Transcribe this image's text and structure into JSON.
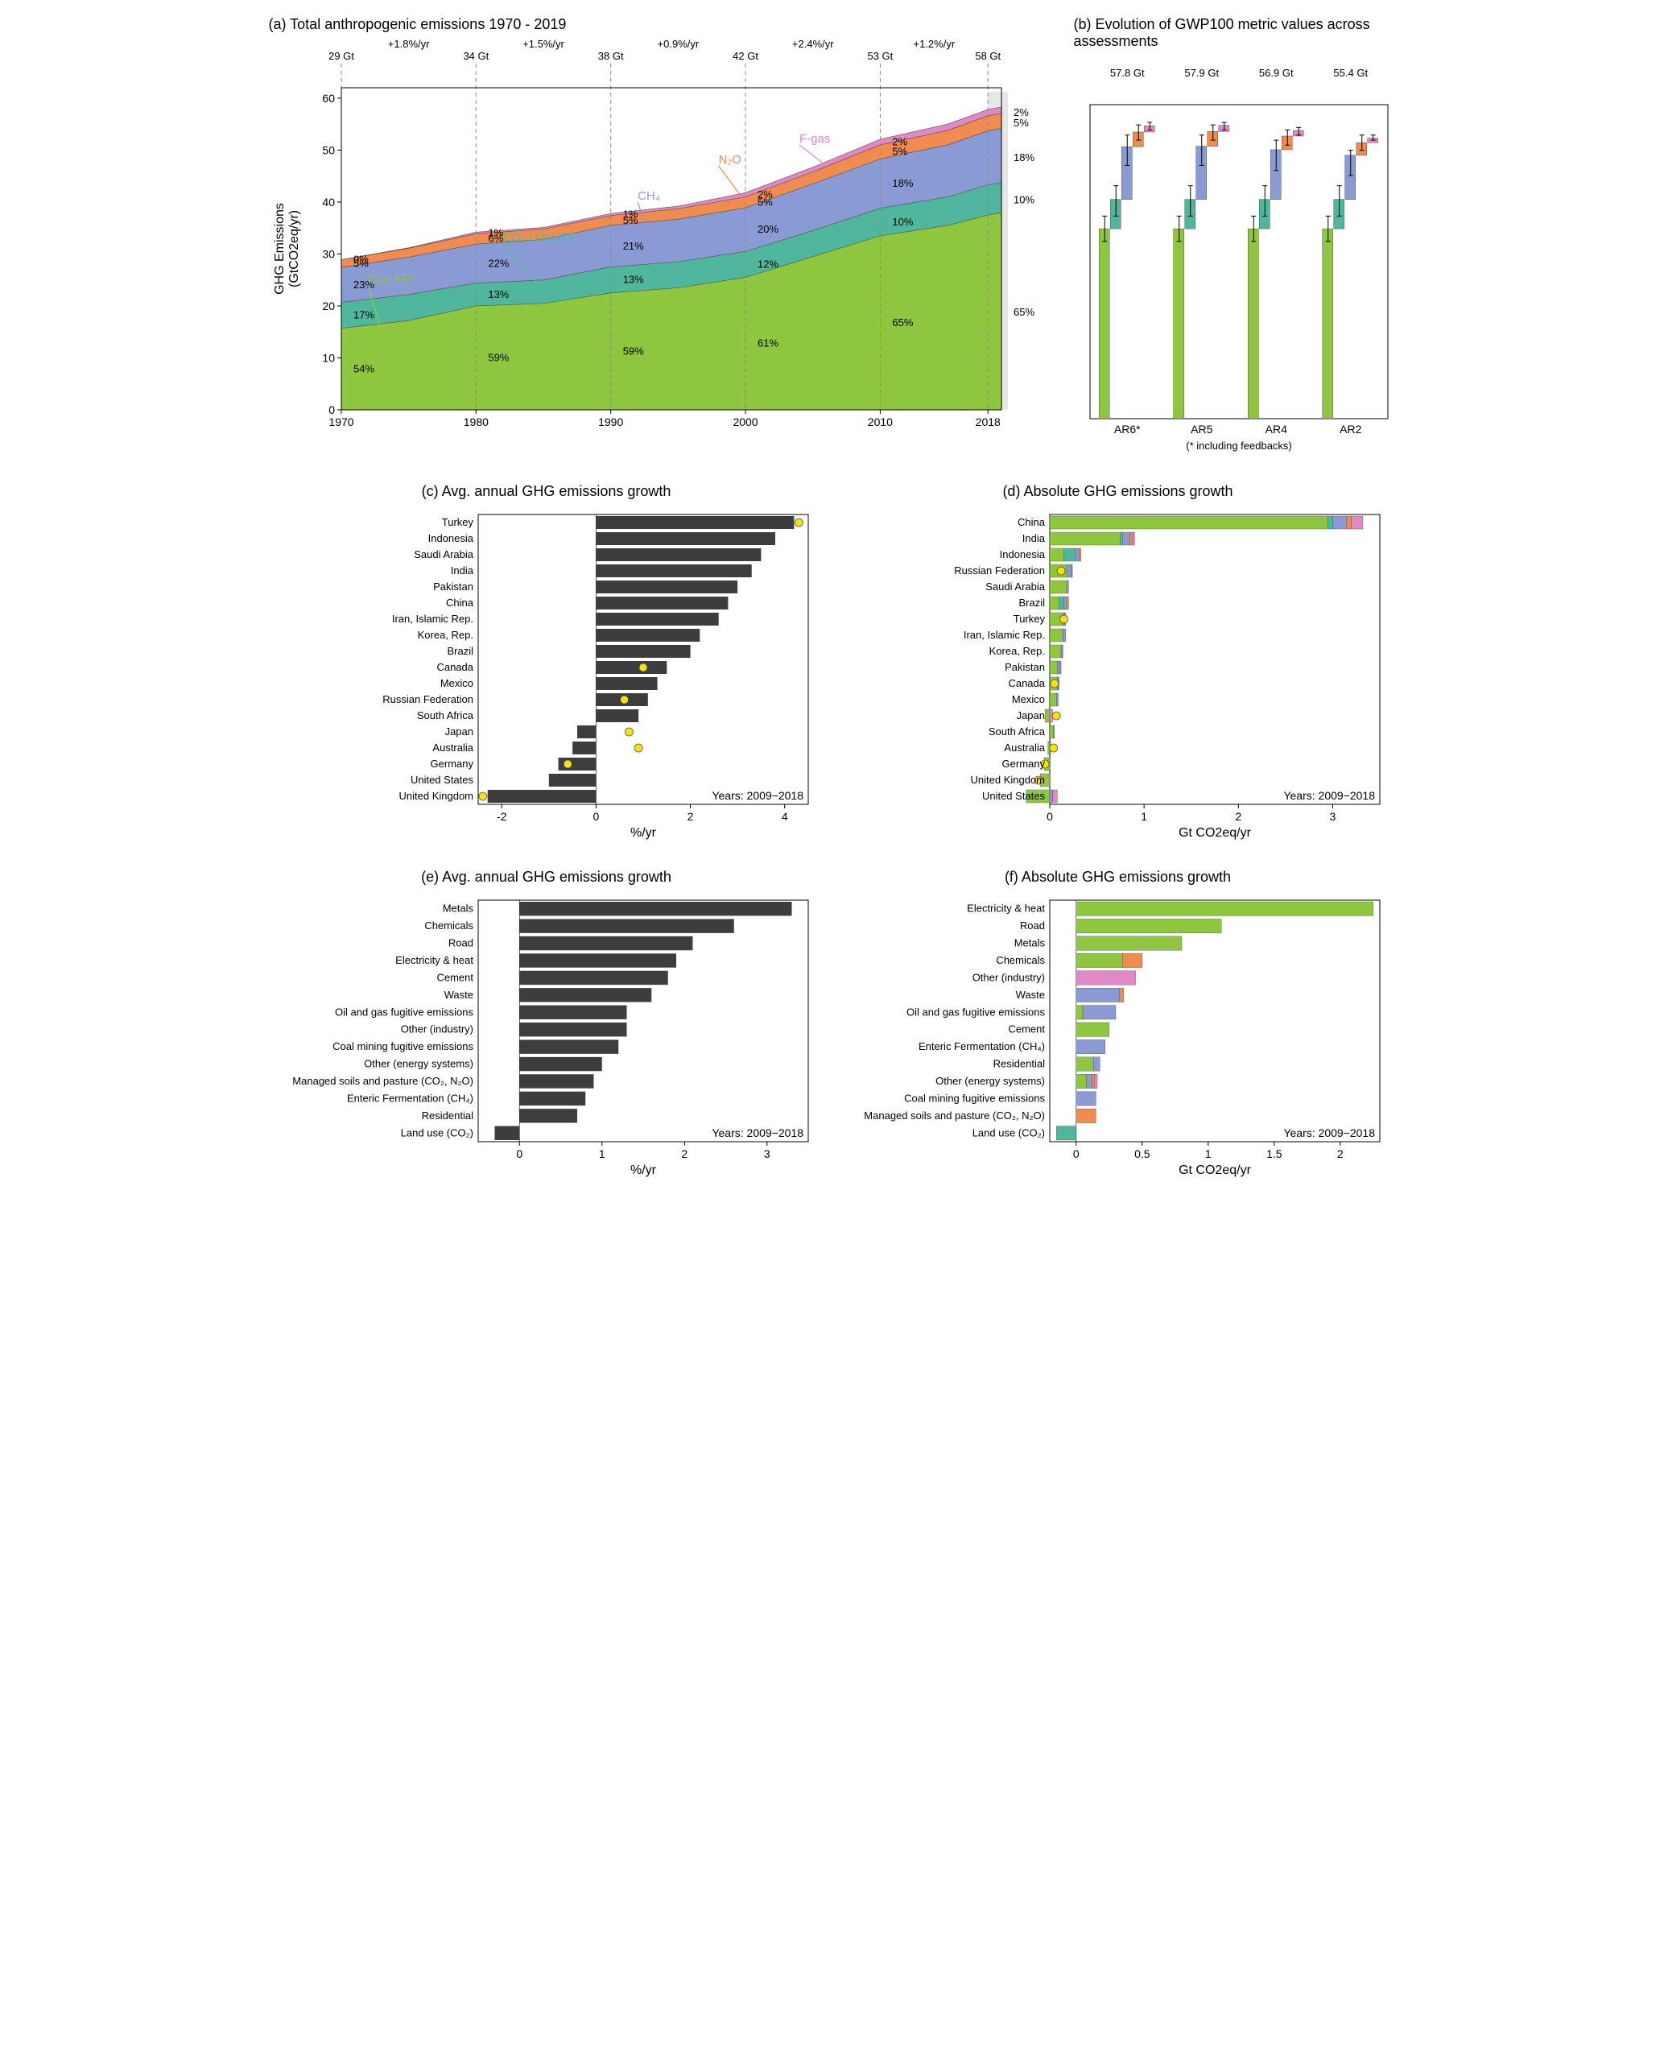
{
  "colors": {
    "co2_ffi": "#8fc63f",
    "co2_lulucf": "#4fb89c",
    "ch4": "#8a9bd4",
    "n2o": "#f08c50",
    "fgas": "#e089c4",
    "gray_bar": "#3d3d3d",
    "grid": "#cccccc",
    "axis": "#000000",
    "marker": "#f5e400",
    "uncertainty": "#d0d0d0",
    "error_bar": "#000000"
  },
  "panelA": {
    "title": "(a) Total anthropogenic emissions 1970 - 2019",
    "ylabel": "GHG Emissions\n(GtCO2eq/yr)",
    "ylim": [
      0,
      62
    ],
    "yticks": [
      0,
      10,
      20,
      30,
      40,
      50,
      60
    ],
    "xlim": [
      1970,
      2019
    ],
    "xticks": [
      1970,
      1980,
      1990,
      2000,
      2010,
      2018
    ],
    "decades": [
      {
        "x": 1970,
        "total": "29 Gt",
        "rate": "+1.8%/yr",
        "pcts": {
          "fgas": "0%",
          "n2o": "5%",
          "ch4": "23%",
          "lulucf": "17%",
          "ffi": "54%"
        }
      },
      {
        "x": 1980,
        "total": "34 Gt",
        "rate": "+1.5%/yr",
        "pcts": {
          "fgas": "1%",
          "n2o": "6%",
          "ch4": "22%",
          "lulucf": "13%",
          "ffi": "59%"
        }
      },
      {
        "x": 1990,
        "total": "38 Gt",
        "rate": "+0.9%/yr",
        "pcts": {
          "fgas": "1%",
          "n2o": "5%",
          "ch4": "21%",
          "lulucf": "13%",
          "ffi": "59%"
        }
      },
      {
        "x": 2000,
        "total": "42 Gt",
        "rate": "+2.4%/yr",
        "pcts": {
          "fgas": "2%",
          "n2o": "5%",
          "ch4": "20%",
          "lulucf": "12%",
          "ffi": "61%"
        }
      },
      {
        "x": 2010,
        "total": "53 Gt",
        "rate": "+1.2%/yr",
        "pcts": {
          "fgas": "2%",
          "n2o": "5%",
          "ch4": "18%",
          "lulucf": "10%",
          "ffi": "65%"
        }
      },
      {
        "x": 2018,
        "total": "58 Gt",
        "rate": "",
        "pcts": {
          "fgas": "2%",
          "n2o": "5%",
          "ch4": "18%",
          "lulucf": "10%",
          "ffi": "65%"
        }
      }
    ],
    "right_pcts": [
      "2%",
      "5%",
      "18%",
      "10%",
      "65%"
    ],
    "series_labels": {
      "co2_ffi": "CO₂ FFI",
      "co2_lulucf": "CO₂ LULUCF",
      "ch4": "CH₄",
      "n2o": "N₂O",
      "fgas": "F-gas"
    },
    "years": [
      1970,
      1975,
      1980,
      1985,
      1990,
      1995,
      2000,
      2005,
      2010,
      2015,
      2018,
      2019
    ],
    "stack": {
      "co2_ffi": [
        15.7,
        17.2,
        20.0,
        20.5,
        22.5,
        23.5,
        25.5,
        29.5,
        33.5,
        35.5,
        37.5,
        38.0
      ],
      "co2_lulucf": [
        5.0,
        5.0,
        4.4,
        4.5,
        5.0,
        5.0,
        5.0,
        5.0,
        5.3,
        5.5,
        5.8,
        5.8
      ],
      "ch4": [
        6.7,
        7.2,
        7.5,
        7.8,
        8.0,
        8.2,
        8.4,
        9.0,
        9.5,
        10.0,
        10.4,
        10.4
      ],
      "n2o": [
        1.5,
        1.7,
        2.0,
        2.0,
        1.9,
        2.0,
        2.1,
        2.3,
        2.7,
        2.8,
        2.9,
        2.9
      ],
      "fgas": [
        0.0,
        0.1,
        0.3,
        0.3,
        0.4,
        0.5,
        0.8,
        0.9,
        1.1,
        1.2,
        1.2,
        1.2
      ]
    }
  },
  "panelB": {
    "title": "(b) Evolution of GWP100 metric values across assessments",
    "footnote": "(* including feedbacks)",
    "categories": [
      "AR6*",
      "AR5",
      "AR4",
      "AR2"
    ],
    "totals": [
      "57.8 Gt",
      "57.9 Gt",
      "56.9 Gt",
      "55.4 Gt"
    ],
    "ylim": [
      0,
      62
    ],
    "stacks": [
      {
        "ffi": 37.5,
        "lulucf": 5.8,
        "ch4": 10.4,
        "n2o": 2.9,
        "fgas": 1.2
      },
      {
        "ffi": 37.5,
        "lulucf": 5.8,
        "ch4": 10.5,
        "n2o": 2.9,
        "fgas": 1.2
      },
      {
        "ffi": 37.5,
        "lulucf": 5.8,
        "ch4": 9.8,
        "n2o": 2.7,
        "fgas": 1.1
      },
      {
        "ffi": 37.5,
        "lulucf": 5.8,
        "ch4": 8.7,
        "n2o": 2.5,
        "fgas": 0.9
      }
    ],
    "errors": [
      {
        "ffi": [
          35,
          40
        ],
        "lulucf": [
          40,
          46
        ],
        "ch4": [
          50,
          56
        ],
        "n2o": [
          55,
          58
        ],
        "fgas": [
          57,
          58.5
        ]
      },
      {
        "ffi": [
          35,
          40
        ],
        "lulucf": [
          40,
          46
        ],
        "ch4": [
          50,
          56
        ],
        "n2o": [
          55,
          58
        ],
        "fgas": [
          57,
          58.5
        ]
      },
      {
        "ffi": [
          35,
          40
        ],
        "lulucf": [
          40,
          46
        ],
        "ch4": [
          49,
          55
        ],
        "n2o": [
          54,
          57
        ],
        "fgas": [
          56,
          57.5
        ]
      },
      {
        "ffi": [
          35,
          40
        ],
        "lulucf": [
          40,
          46
        ],
        "ch4": [
          48,
          53
        ],
        "n2o": [
          53,
          56
        ],
        "fgas": [
          55,
          56
        ]
      }
    ]
  },
  "panelC": {
    "title": "(c) Avg. annual GHG emissions growth",
    "xlabel": "%/yr",
    "xlim": [
      -2.5,
      4.5
    ],
    "xticks": [
      -2,
      0,
      2,
      4
    ],
    "note": "Years: 2009−2018",
    "rows": [
      {
        "name": "Turkey",
        "val": 4.2,
        "marker": 4.3
      },
      {
        "name": "Indonesia",
        "val": 3.8,
        "marker": null
      },
      {
        "name": "Saudi Arabia",
        "val": 3.5,
        "marker": null
      },
      {
        "name": "India",
        "val": 3.3,
        "marker": null
      },
      {
        "name": "Pakistan",
        "val": 3.0,
        "marker": null
      },
      {
        "name": "China",
        "val": 2.8,
        "marker": null
      },
      {
        "name": "Iran, Islamic Rep.",
        "val": 2.6,
        "marker": null
      },
      {
        "name": "Korea, Rep.",
        "val": 2.2,
        "marker": null
      },
      {
        "name": "Brazil",
        "val": 2.0,
        "marker": null
      },
      {
        "name": "Canada",
        "val": 1.5,
        "marker": 1.0
      },
      {
        "name": "Mexico",
        "val": 1.3,
        "marker": null
      },
      {
        "name": "Russian Federation",
        "val": 1.1,
        "marker": 0.6
      },
      {
        "name": "South Africa",
        "val": 0.9,
        "marker": null
      },
      {
        "name": "Japan",
        "val": -0.4,
        "marker": 0.7
      },
      {
        "name": "Australia",
        "val": -0.5,
        "marker": 0.9
      },
      {
        "name": "Germany",
        "val": -0.8,
        "marker": -0.6
      },
      {
        "name": "United States",
        "val": -1.0,
        "marker": null
      },
      {
        "name": "United Kingdom",
        "val": -2.3,
        "marker": -2.4
      }
    ]
  },
  "panelD": {
    "title": "(d) Absolute GHG emissions growth",
    "xlabel": "Gt CO2eq/yr",
    "xlim": [
      0,
      3.5
    ],
    "xticks": [
      0,
      1,
      2,
      3
    ],
    "note": "Years: 2009−2018",
    "rows": [
      {
        "name": "China",
        "stack": {
          "ffi": 2.95,
          "lulucf": 0.05,
          "ch4": 0.15,
          "n2o": 0.05,
          "fgas": 0.12
        },
        "marker": null
      },
      {
        "name": "India",
        "stack": {
          "ffi": 0.75,
          "lulucf": 0.02,
          "ch4": 0.08,
          "n2o": 0.03,
          "fgas": 0.02
        },
        "marker": null
      },
      {
        "name": "Indonesia",
        "stack": {
          "ffi": 0.15,
          "lulucf": 0.12,
          "ch4": 0.04,
          "n2o": 0.02,
          "fgas": 0.0
        },
        "marker": null
      },
      {
        "name": "Russian Federation",
        "stack": {
          "ffi": 0.18,
          "lulucf": 0.0,
          "ch4": 0.05,
          "n2o": 0.01,
          "fgas": 0.0
        },
        "marker": 0.12
      },
      {
        "name": "Saudi Arabia",
        "stack": {
          "ffi": 0.18,
          "lulucf": 0.0,
          "ch4": 0.02,
          "n2o": 0.0,
          "fgas": 0.0
        },
        "marker": null
      },
      {
        "name": "Brazil",
        "stack": {
          "ffi": 0.1,
          "lulucf": 0.05,
          "ch4": 0.03,
          "n2o": 0.02,
          "fgas": 0.0
        },
        "marker": null
      },
      {
        "name": "Turkey",
        "stack": {
          "ffi": 0.14,
          "lulucf": 0.0,
          "ch4": 0.02,
          "n2o": 0.01,
          "fgas": 0.0
        },
        "marker": 0.15
      },
      {
        "name": "Iran, Islamic Rep.",
        "stack": {
          "ffi": 0.14,
          "lulucf": 0.0,
          "ch4": 0.03,
          "n2o": 0.0,
          "fgas": 0.0
        },
        "marker": null
      },
      {
        "name": "Korea, Rep.",
        "stack": {
          "ffi": 0.12,
          "lulucf": 0.0,
          "ch4": 0.01,
          "n2o": 0.0,
          "fgas": 0.01
        },
        "marker": null
      },
      {
        "name": "Pakistan",
        "stack": {
          "ffi": 0.08,
          "lulucf": 0.0,
          "ch4": 0.03,
          "n2o": 0.01,
          "fgas": 0.0
        },
        "marker": null
      },
      {
        "name": "Canada",
        "stack": {
          "ffi": 0.08,
          "lulucf": 0.0,
          "ch4": 0.02,
          "n2o": 0.0,
          "fgas": 0.0
        },
        "marker": 0.05
      },
      {
        "name": "Mexico",
        "stack": {
          "ffi": 0.07,
          "lulucf": 0.0,
          "ch4": 0.02,
          "n2o": 0.0,
          "fgas": 0.0
        },
        "marker": null
      },
      {
        "name": "Japan",
        "stack": {
          "ffi": -0.05,
          "lulucf": 0.0,
          "ch4": 0.0,
          "n2o": 0.0,
          "fgas": 0.03
        },
        "marker": 0.07
      },
      {
        "name": "South Africa",
        "stack": {
          "ffi": 0.04,
          "lulucf": 0.0,
          "ch4": 0.01,
          "n2o": 0.0,
          "fgas": 0.0
        },
        "marker": null
      },
      {
        "name": "Australia",
        "stack": {
          "ffi": -0.02,
          "lulucf": 0.0,
          "ch4": 0.01,
          "n2o": 0.0,
          "fgas": 0.0
        },
        "marker": 0.04
      },
      {
        "name": "Germany",
        "stack": {
          "ffi": -0.06,
          "lulucf": 0.0,
          "ch4": 0.0,
          "n2o": 0.0,
          "fgas": 0.0
        },
        "marker": -0.05
      },
      {
        "name": "United Kingdom",
        "stack": {
          "ffi": -0.1,
          "lulucf": 0.0,
          "ch4": 0.0,
          "n2o": 0.0,
          "fgas": 0.0
        },
        "marker": -0.12
      },
      {
        "name": "United States",
        "stack": {
          "ffi": -0.25,
          "lulucf": 0.0,
          "ch4": 0.03,
          "n2o": 0.0,
          "fgas": 0.05
        },
        "marker": null
      }
    ]
  },
  "panelE": {
    "title": "(e) Avg. annual GHG emissions growth",
    "xlabel": "%/yr",
    "xlim": [
      -0.5,
      3.5
    ],
    "xticks": [
      0,
      1,
      2,
      3
    ],
    "note": "Years: 2009−2018",
    "rows": [
      {
        "name": "Metals",
        "val": 3.3
      },
      {
        "name": "Chemicals",
        "val": 2.6
      },
      {
        "name": "Road",
        "val": 2.1
      },
      {
        "name": "Electricity & heat",
        "val": 1.9
      },
      {
        "name": "Cement",
        "val": 1.8
      },
      {
        "name": "Waste",
        "val": 1.6
      },
      {
        "name": "Oil and gas fugitive emissions",
        "val": 1.3
      },
      {
        "name": "Other (industry)",
        "val": 1.3
      },
      {
        "name": "Coal mining fugitive emissions",
        "val": 1.2
      },
      {
        "name": "Other (energy systems)",
        "val": 1.0
      },
      {
        "name": "Managed soils and pasture (CO₂, N₂O)",
        "val": 0.9
      },
      {
        "name": "Enteric Fermentation (CH₄)",
        "val": 0.8
      },
      {
        "name": "Residential",
        "val": 0.7
      },
      {
        "name": "Land use (CO₂)",
        "val": -0.3
      }
    ]
  },
  "panelF": {
    "title": "(f) Absolute GHG emissions growth",
    "xlabel": "Gt CO2eq/yr",
    "xlim": [
      -0.2,
      2.3
    ],
    "xticks": [
      0,
      0.5,
      1.0,
      1.5,
      2.0
    ],
    "note": "Years: 2009−2018",
    "rows": [
      {
        "name": "Electricity & heat",
        "stack": {
          "ffi": 2.25,
          "lulucf": 0,
          "ch4": 0,
          "n2o": 0,
          "fgas": 0
        }
      },
      {
        "name": "Road",
        "stack": {
          "ffi": 1.1,
          "lulucf": 0,
          "ch4": 0,
          "n2o": 0,
          "fgas": 0
        }
      },
      {
        "name": "Metals",
        "stack": {
          "ffi": 0.8,
          "lulucf": 0,
          "ch4": 0,
          "n2o": 0,
          "fgas": 0
        }
      },
      {
        "name": "Chemicals",
        "stack": {
          "ffi": 0.35,
          "lulucf": 0,
          "ch4": 0,
          "n2o": 0.15,
          "fgas": 0
        }
      },
      {
        "name": "Other (industry)",
        "stack": {
          "ffi": 0,
          "lulucf": 0,
          "ch4": 0,
          "n2o": 0,
          "fgas": 0.45
        }
      },
      {
        "name": "Waste",
        "stack": {
          "ffi": 0,
          "lulucf": 0,
          "ch4": 0.33,
          "n2o": 0.03,
          "fgas": 0
        }
      },
      {
        "name": "Oil and gas fugitive emissions",
        "stack": {
          "ffi": 0.05,
          "lulucf": 0,
          "ch4": 0.25,
          "n2o": 0,
          "fgas": 0
        }
      },
      {
        "name": "Cement",
        "stack": {
          "ffi": 0.25,
          "lulucf": 0,
          "ch4": 0,
          "n2o": 0,
          "fgas": 0
        }
      },
      {
        "name": "Enteric Fermentation (CH₄)",
        "stack": {
          "ffi": 0,
          "lulucf": 0,
          "ch4": 0.22,
          "n2o": 0,
          "fgas": 0
        }
      },
      {
        "name": "Residential",
        "stack": {
          "ffi": 0.13,
          "lulucf": 0,
          "ch4": 0.05,
          "n2o": 0,
          "fgas": 0
        }
      },
      {
        "name": "Other (energy systems)",
        "stack": {
          "ffi": 0.08,
          "lulucf": 0,
          "ch4": 0.04,
          "n2o": 0.02,
          "fgas": 0.02
        }
      },
      {
        "name": "Coal mining fugitive emissions",
        "stack": {
          "ffi": 0,
          "lulucf": 0,
          "ch4": 0.15,
          "n2o": 0,
          "fgas": 0
        }
      },
      {
        "name": "Managed soils and pasture (CO₂, N₂O)",
        "stack": {
          "ffi": 0,
          "lulucf": 0,
          "ch4": 0,
          "n2o": 0.15,
          "fgas": 0
        }
      },
      {
        "name": "Land use (CO₂)",
        "stack": {
          "ffi": 0,
          "lulucf": -0.15,
          "ch4": 0,
          "n2o": 0,
          "fgas": 0
        }
      }
    ]
  }
}
